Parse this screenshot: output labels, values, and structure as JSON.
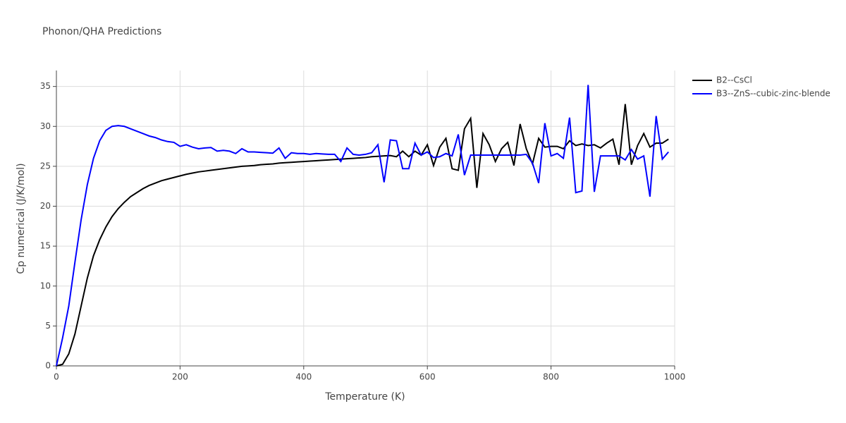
{
  "chart_data": {
    "type": "line",
    "title": "Phonon/QHA Predictions",
    "x_label": "Temperature (K)",
    "y_label": "Cp numerical (J/K/mol)",
    "x": [
      0,
      10,
      20,
      30,
      40,
      50,
      60,
      70,
      80,
      90,
      100,
      110,
      120,
      130,
      140,
      150,
      160,
      170,
      180,
      190,
      200,
      210,
      220,
      230,
      240,
      250,
      260,
      270,
      280,
      290,
      300,
      310,
      320,
      330,
      340,
      350,
      360,
      370,
      380,
      390,
      400,
      410,
      420,
      430,
      440,
      450,
      460,
      470,
      480,
      490,
      500,
      510,
      520,
      530,
      540,
      550,
      560,
      570,
      580,
      590,
      600,
      610,
      620,
      630,
      640,
      650,
      660,
      670,
      680,
      690,
      700,
      710,
      720,
      730,
      740,
      750,
      760,
      770,
      780,
      790,
      800,
      810,
      820,
      830,
      840,
      850,
      860,
      870,
      880,
      890,
      900,
      910,
      920,
      930,
      940,
      950,
      960,
      970,
      980,
      990
    ],
    "series": [
      {
        "name": "B2--CsCl",
        "color": "#000000",
        "values": [
          0,
          0.2,
          1.5,
          4,
          7.5,
          11,
          13.8,
          15.8,
          17.4,
          18.7,
          19.7,
          20.5,
          21.2,
          21.7,
          22.2,
          22.6,
          22.9,
          23.2,
          23.4,
          23.6,
          23.8,
          24.0,
          24.15,
          24.3,
          24.4,
          24.5,
          24.6,
          24.7,
          24.8,
          24.9,
          25.0,
          25.05,
          25.1,
          25.2,
          25.25,
          25.3,
          25.4,
          25.45,
          25.5,
          25.55,
          25.6,
          25.65,
          25.7,
          25.75,
          25.8,
          25.85,
          25.9,
          25.95,
          26.0,
          26.05,
          26.1,
          26.2,
          26.25,
          26.3,
          26.35,
          26.2,
          26.9,
          26.2,
          26.9,
          26.4,
          27.7,
          25.1,
          27.4,
          28.5,
          24.7,
          24.5,
          29.7,
          31.0,
          22.3,
          29.1,
          27.7,
          25.6,
          27.2,
          28.0,
          25.1,
          30.3,
          27.2,
          25.3,
          28.5,
          27.4,
          27.5,
          27.5,
          27.2,
          28.2,
          27.6,
          27.8,
          27.6,
          27.7,
          27.3,
          27.9,
          28.4,
          25.2,
          32.8,
          25.2,
          27.6,
          29.1,
          27.4,
          27.9,
          27.9,
          28.4
        ]
      },
      {
        "name": "B3--ZnS--cubic-zinc-blende",
        "color": "#0000ff",
        "values": [
          0,
          3.5,
          7.5,
          13,
          18.3,
          22.7,
          26.0,
          28.2,
          29.5,
          30.0,
          30.1,
          30.0,
          29.7,
          29.4,
          29.1,
          28.8,
          28.6,
          28.3,
          28.1,
          28.0,
          27.5,
          27.7,
          27.4,
          27.2,
          27.3,
          27.35,
          26.9,
          27.0,
          26.9,
          26.6,
          27.2,
          26.8,
          26.8,
          26.75,
          26.7,
          26.65,
          27.3,
          26.0,
          26.7,
          26.6,
          26.6,
          26.5,
          26.6,
          26.55,
          26.5,
          26.5,
          25.6,
          27.3,
          26.5,
          26.4,
          26.5,
          26.7,
          27.7,
          23.0,
          28.3,
          28.2,
          24.7,
          24.7,
          27.9,
          26.4,
          26.8,
          26.1,
          26.2,
          26.6,
          26.3,
          29.0,
          23.9,
          26.4,
          26.4,
          26.4,
          26.4,
          26.4,
          26.4,
          26.4,
          26.4,
          26.4,
          26.5,
          25.4,
          22.9,
          30.4,
          26.3,
          26.6,
          26.0,
          31.1,
          21.7,
          21.9,
          35.2,
          21.8,
          26.3,
          26.3,
          26.3,
          26.3,
          25.8,
          27.1,
          25.9,
          26.3,
          21.2,
          31.3,
          25.9,
          26.8
        ]
      }
    ],
    "xlim": [
      0,
      1000
    ],
    "xticks": [
      0,
      200,
      400,
      600,
      800,
      1000
    ],
    "ylim": [
      0,
      37
    ],
    "yticks": [
      0,
      5,
      10,
      15,
      20,
      25,
      30,
      35
    ],
    "grid": true,
    "legend": "top-right"
  }
}
